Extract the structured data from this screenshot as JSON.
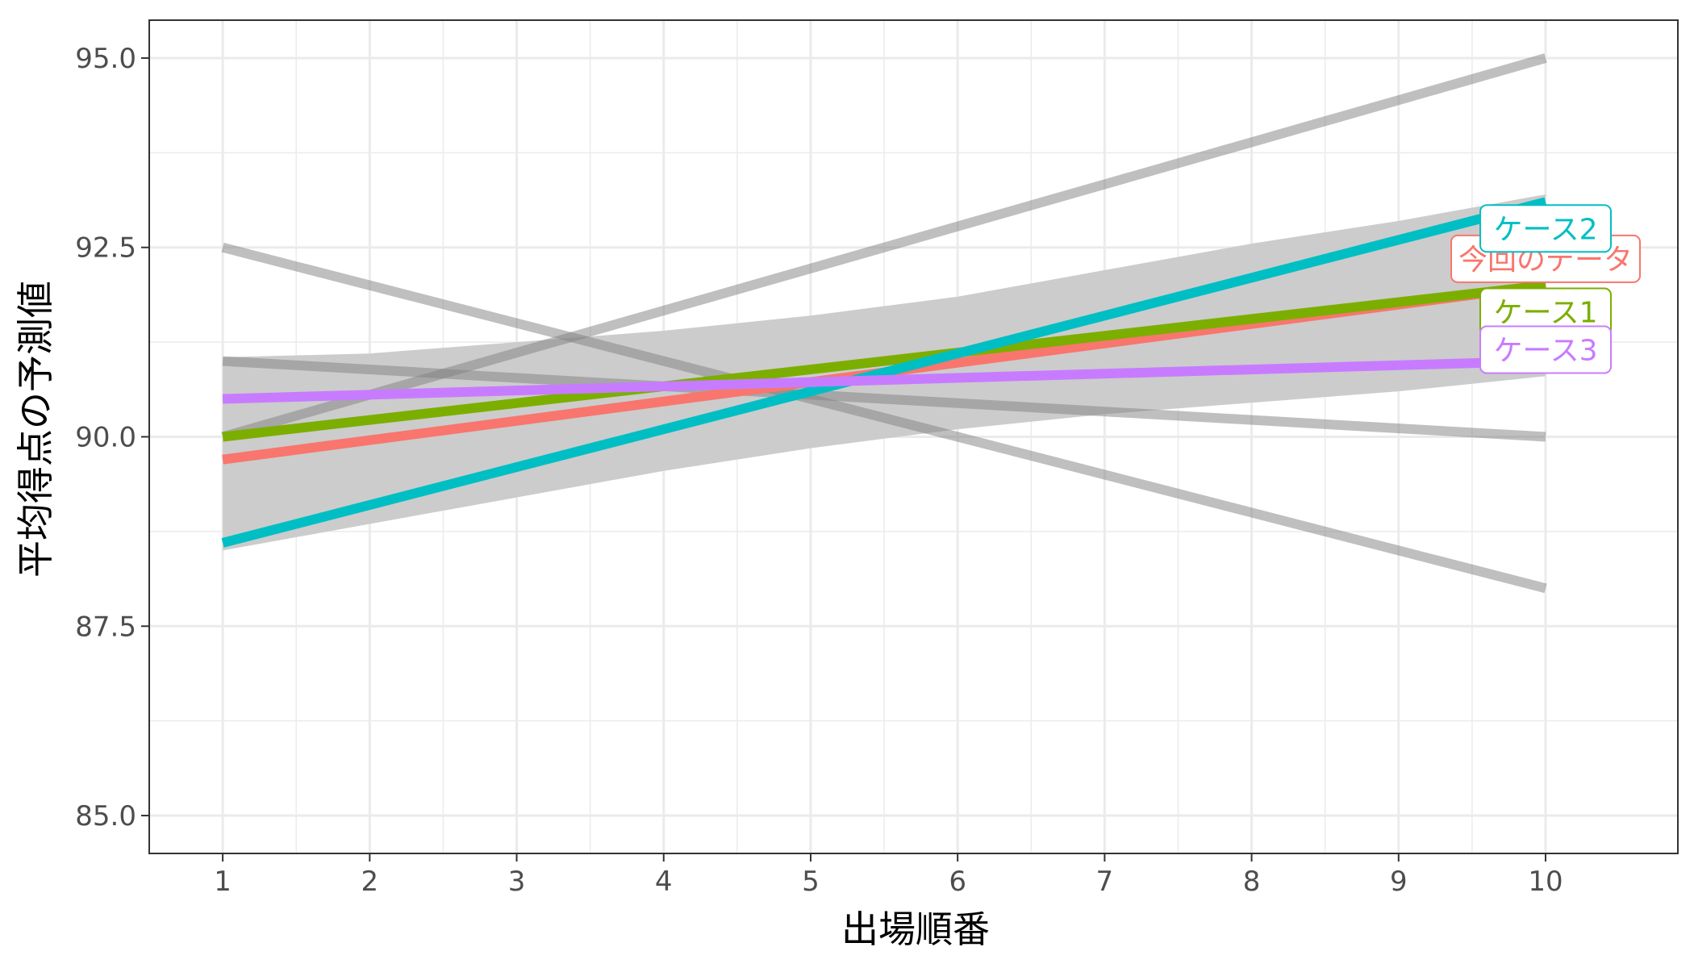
{
  "chart_data": {
    "type": "line",
    "xlabel": "出場順番",
    "ylabel": "平均得点の予測値",
    "xlim": [
      0.5,
      10.9
    ],
    "ylim": [
      84.5,
      95.5
    ],
    "x_ticks": [
      1,
      2,
      3,
      4,
      5,
      6,
      7,
      8,
      9,
      10
    ],
    "y_ticks": [
      85.0,
      87.5,
      90.0,
      92.5,
      95.0
    ],
    "x_tick_labels": [
      "1",
      "2",
      "3",
      "4",
      "5",
      "6",
      "7",
      "8",
      "9",
      "10"
    ],
    "y_tick_labels": [
      "85.0",
      "87.5",
      "90.0",
      "92.5",
      "95.0"
    ],
    "grid": true,
    "confidence_band": {
      "x": [
        1,
        2,
        3,
        4,
        5,
        6,
        7,
        8,
        9,
        10
      ],
      "upper": [
        91.05,
        91.1,
        91.25,
        91.4,
        91.6,
        91.85,
        92.2,
        92.55,
        92.85,
        93.2
      ],
      "lower": [
        88.5,
        88.85,
        89.2,
        89.55,
        89.85,
        90.1,
        90.3,
        90.45,
        90.6,
        90.8
      ],
      "color": "#cccccc"
    },
    "background_lines": [
      {
        "x": [
          1,
          10
        ],
        "y": [
          90.0,
          95.0
        ]
      },
      {
        "x": [
          1,
          10
        ],
        "y": [
          92.5,
          88.0
        ]
      },
      {
        "x": [
          1,
          10
        ],
        "y": [
          91.0,
          90.0
        ]
      }
    ],
    "series": [
      {
        "name": "今回のデータ",
        "x": [
          1,
          10
        ],
        "y": [
          89.7,
          92.0
        ],
        "color": "#F8766D"
      },
      {
        "name": "ケース1",
        "x": [
          1,
          10
        ],
        "y": [
          90.0,
          92.0
        ],
        "color": "#7CAE00"
      },
      {
        "name": "ケース2",
        "x": [
          1,
          10
        ],
        "y": [
          88.6,
          93.1
        ],
        "color": "#00BFC4"
      },
      {
        "name": "ケース3",
        "x": [
          1,
          10
        ],
        "y": [
          90.5,
          91.0
        ],
        "color": "#C77CFF"
      }
    ],
    "labels": [
      {
        "text": "今回のデータ",
        "series": 0,
        "x": 10,
        "y": 92.35
      },
      {
        "text": "ケース1",
        "series": 1,
        "x": 10,
        "y": 91.65
      },
      {
        "text": "ケース2",
        "series": 2,
        "x": 10,
        "y": 92.75
      },
      {
        "text": "ケース3",
        "series": 3,
        "x": 10,
        "y": 91.15
      }
    ]
  }
}
